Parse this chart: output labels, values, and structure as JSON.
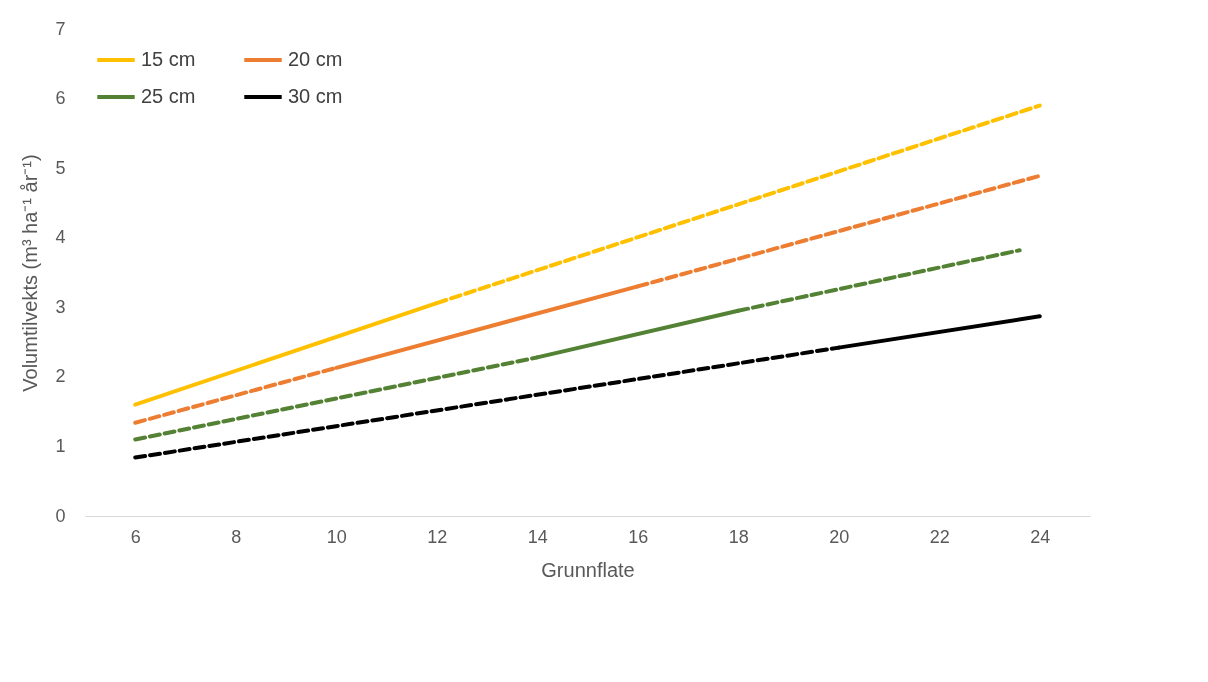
{
  "chart_data": {
    "type": "line",
    "xlabel": "Grunnflate",
    "ylabel": "Volumtilvekts (m³ ha⁻¹ år⁻¹)",
    "xlim": [
      5,
      25
    ],
    "xticks": [
      6,
      8,
      10,
      12,
      14,
      16,
      18,
      20,
      22,
      24
    ],
    "ylim": [
      0,
      7
    ],
    "yticks": [
      0,
      1,
      2,
      3,
      4,
      5,
      6,
      7
    ],
    "grid": false,
    "legend": "top left",
    "marker": "none",
    "series": [
      {
        "name": "15 cm",
        "color": "#ffc000",
        "line_style": "solid",
        "x": [
          6,
          12
        ],
        "values": [
          1.6,
          3.06
        ]
      },
      {
        "name": "20 cm",
        "color": "#ed7d31",
        "line_style": "solid",
        "x": [
          10,
          16
        ],
        "values": [
          2.13,
          3.3
        ]
      },
      {
        "name": "25 cm",
        "color": "#548235",
        "line_style": "solid",
        "x": [
          14,
          18
        ],
        "values": [
          2.28,
          2.95
        ]
      },
      {
        "name": "30 cm",
        "color": "#000000",
        "line_style": "solid",
        "x": [
          20,
          24
        ],
        "values": [
          2.42,
          2.87
        ]
      },
      {
        "color": "#ffc000",
        "line_style": "dashed",
        "x": [
          12,
          24
        ],
        "values": [
          3.06,
          5.9
        ]
      },
      {
        "color": "#ed7d31",
        "line_style": "dashed",
        "x": [
          6,
          10
        ],
        "values": [
          1.34,
          2.13
        ]
      },
      {
        "color": "#ed7d31",
        "line_style": "dashed",
        "x": [
          16,
          24
        ],
        "values": [
          3.3,
          4.89
        ]
      },
      {
        "color": "#548235",
        "line_style": "dashed",
        "x": [
          6,
          14
        ],
        "values": [
          1.1,
          2.28
        ]
      },
      {
        "color": "#548235",
        "line_style": "dashed",
        "x": [
          18,
          23.6
        ],
        "values": [
          2.95,
          3.82
        ]
      },
      {
        "color": "#000000",
        "line_style": "dashed",
        "x": [
          6,
          20
        ],
        "values": [
          0.84,
          2.42
        ]
      }
    ]
  }
}
